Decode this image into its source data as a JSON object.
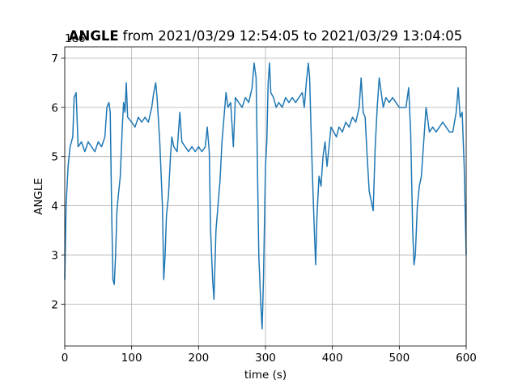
{
  "chart_data": {
    "type": "line",
    "title_bold": "ANGLE",
    "title": "from 2021/03/29 12:54:05 to 2021/03/29 13:04:05",
    "x_label": "time (s)",
    "y_label": "ANGLE",
    "offset_label": "1e6",
    "xlim": [
      0,
      600
    ],
    "xticks": [
      0,
      100,
      200,
      300,
      400,
      500,
      600
    ],
    "ylim": [
      1.15,
      7.23
    ],
    "yticks": [
      2,
      3,
      4,
      5,
      6,
      7
    ],
    "grid": true,
    "x": [
      0,
      2,
      5,
      8,
      12,
      14,
      17,
      20,
      25,
      30,
      35,
      40,
      45,
      50,
      55,
      60,
      63,
      66,
      68,
      70,
      72,
      74,
      76,
      78,
      80,
      83,
      86,
      88,
      90,
      92,
      94,
      100,
      105,
      110,
      115,
      120,
      125,
      130,
      133,
      136,
      138,
      142,
      146,
      148,
      150,
      152,
      155,
      158,
      160,
      163,
      168,
      172,
      175,
      180,
      185,
      190,
      195,
      200,
      205,
      210,
      213,
      216,
      218,
      221,
      223,
      226,
      229,
      232,
      235,
      238,
      241,
      244,
      248,
      252,
      255,
      260,
      265,
      270,
      275,
      280,
      283,
      286,
      288,
      290,
      293,
      295,
      297,
      300,
      302,
      304,
      306,
      308,
      312,
      316,
      320,
      325,
      330,
      335,
      340,
      345,
      350,
      355,
      358,
      361,
      364,
      366,
      368,
      370,
      373,
      375,
      377,
      380,
      383,
      386,
      389,
      392,
      395,
      398,
      402,
      406,
      410,
      415,
      420,
      425,
      430,
      435,
      440,
      443,
      446,
      449,
      452,
      455,
      458,
      461,
      464,
      467,
      470,
      473,
      476,
      480,
      485,
      490,
      495,
      500,
      505,
      510,
      514,
      517,
      520,
      522,
      524,
      527,
      530,
      533,
      536,
      540,
      545,
      550,
      555,
      560,
      565,
      570,
      575,
      580,
      585,
      588,
      591,
      594,
      597,
      600
    ],
    "series": [
      {
        "name": "ANGLE",
        "color": "#1f77b4",
        "values": [
          2.5,
          4.0,
          4.8,
          5.2,
          5.4,
          6.2,
          6.3,
          5.2,
          5.3,
          5.1,
          5.3,
          5.2,
          5.1,
          5.3,
          5.2,
          5.4,
          6.0,
          6.1,
          5.9,
          4.0,
          2.5,
          2.4,
          3.0,
          3.9,
          4.2,
          4.6,
          5.6,
          6.1,
          5.9,
          6.5,
          5.8,
          5.7,
          5.6,
          5.8,
          5.7,
          5.8,
          5.7,
          6.0,
          6.3,
          6.5,
          6.2,
          5.3,
          4.0,
          2.5,
          3.0,
          3.8,
          4.2,
          5.0,
          5.4,
          5.2,
          5.1,
          5.9,
          5.3,
          5.2,
          5.1,
          5.2,
          5.1,
          5.2,
          5.1,
          5.2,
          5.6,
          5.1,
          3.5,
          2.5,
          2.1,
          3.5,
          4.0,
          4.5,
          5.3,
          5.8,
          6.3,
          6.0,
          6.1,
          5.2,
          6.2,
          6.1,
          6.0,
          6.2,
          6.1,
          6.4,
          6.9,
          6.6,
          4.8,
          3.0,
          2.0,
          1.5,
          2.5,
          4.8,
          5.3,
          6.5,
          6.9,
          6.3,
          6.2,
          6.0,
          6.1,
          6.0,
          6.2,
          6.1,
          6.2,
          6.1,
          6.2,
          6.3,
          6.0,
          6.5,
          6.9,
          6.6,
          5.6,
          4.7,
          3.5,
          2.8,
          3.8,
          4.6,
          4.4,
          5.0,
          5.3,
          4.8,
          5.2,
          5.6,
          5.5,
          5.4,
          5.6,
          5.5,
          5.7,
          5.6,
          5.8,
          5.7,
          6.0,
          6.6,
          5.9,
          5.8,
          5.0,
          4.3,
          4.1,
          3.9,
          5.2,
          6.0,
          6.6,
          6.3,
          6.0,
          6.2,
          6.1,
          6.2,
          6.1,
          6.0,
          6.0,
          6.0,
          6.4,
          5.5,
          3.5,
          2.8,
          3.0,
          4.0,
          4.4,
          4.6,
          5.2,
          6.0,
          5.5,
          5.6,
          5.5,
          5.6,
          5.7,
          5.6,
          5.5,
          5.5,
          5.9,
          6.4,
          5.8,
          5.9,
          4.8,
          3.0
        ]
      }
    ]
  }
}
